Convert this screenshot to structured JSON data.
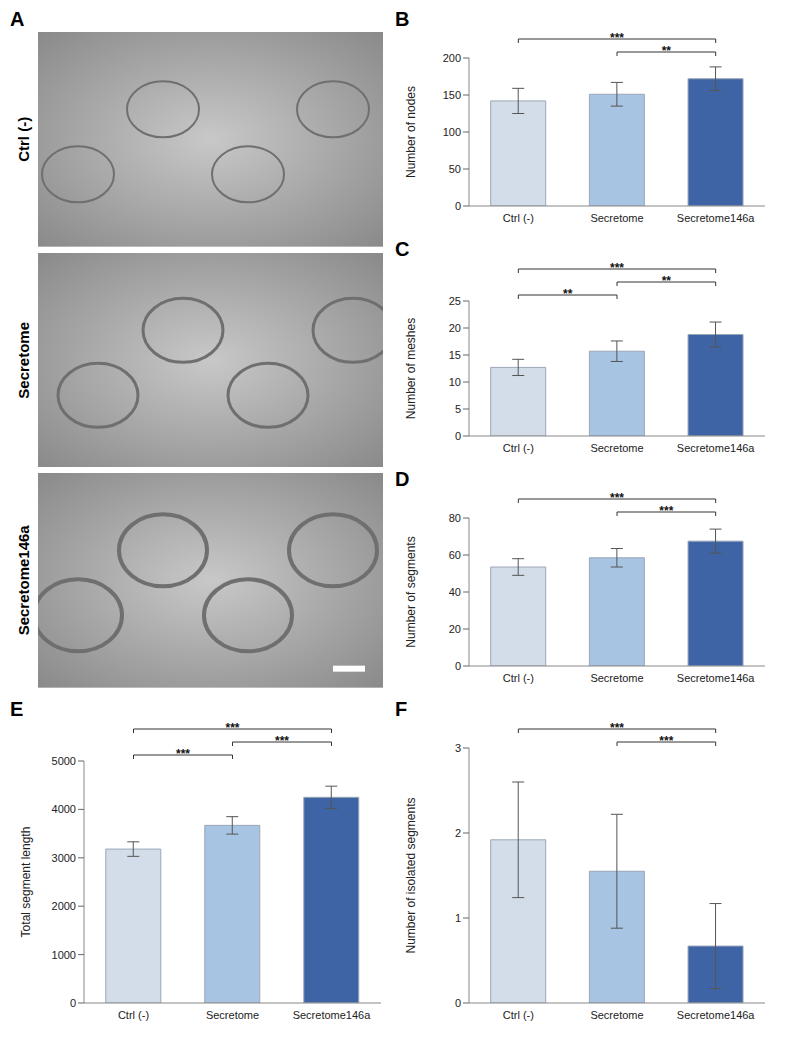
{
  "image_panel": {
    "panel_label": "A",
    "rows": [
      "Ctrl (-)",
      "Secretome",
      "Secretome146a"
    ]
  },
  "chart_data": [
    {
      "type": "bar",
      "panel_label": "B",
      "y_label": "Number of nodes",
      "categories": [
        "Ctrl (-)",
        "Secretome",
        "Secretome146a"
      ],
      "values": [
        142,
        151,
        172
      ],
      "errors": [
        17,
        16,
        16
      ],
      "colors": [
        "#d3dce9",
        "#a7c4e2",
        "#3f64a5"
      ],
      "ylim": [
        0,
        200
      ],
      "yticks": [
        0,
        50,
        100,
        150,
        200
      ],
      "grid": false,
      "annotations": [
        {
          "from": 1,
          "to": 2,
          "label": "**"
        },
        {
          "from": 0,
          "to": 2,
          "label": "***"
        }
      ]
    },
    {
      "type": "bar",
      "panel_label": "C",
      "y_label": "Number of meshes",
      "categories": [
        "Ctrl (-)",
        "Secretome",
        "Secretome146a"
      ],
      "values": [
        12.7,
        15.7,
        18.8
      ],
      "errors": [
        1.5,
        1.9,
        2.3
      ],
      "colors": [
        "#d3dce9",
        "#a7c4e2",
        "#3f64a5"
      ],
      "ylim": [
        0,
        25
      ],
      "yticks": [
        0,
        5,
        10,
        15,
        20,
        25
      ],
      "grid": false,
      "annotations": [
        {
          "from": 0,
          "to": 1,
          "label": "**"
        },
        {
          "from": 1,
          "to": 2,
          "label": "**"
        },
        {
          "from": 0,
          "to": 2,
          "label": "***"
        }
      ]
    },
    {
      "type": "bar",
      "panel_label": "D",
      "y_label": "Number of segments",
      "categories": [
        "Ctrl (-)",
        "Secretome",
        "Secretome146a"
      ],
      "values": [
        53.5,
        58.5,
        67.5
      ],
      "errors": [
        4.5,
        5,
        6.5
      ],
      "colors": [
        "#d3dce9",
        "#a7c4e2",
        "#3f64a5"
      ],
      "ylim": [
        0,
        80
      ],
      "yticks": [
        0,
        20,
        40,
        60,
        80
      ],
      "grid": false,
      "annotations": [
        {
          "from": 1,
          "to": 2,
          "label": "***"
        },
        {
          "from": 0,
          "to": 2,
          "label": "***"
        }
      ]
    },
    {
      "type": "bar",
      "panel_label": "E",
      "y_label": "Total segment length",
      "categories": [
        "Ctrl (-)",
        "Secretome",
        "Secretome146a"
      ],
      "values": [
        3180,
        3670,
        4250
      ],
      "errors": [
        150,
        180,
        230
      ],
      "colors": [
        "#d3dce9",
        "#a7c4e2",
        "#3f64a5"
      ],
      "ylim": [
        0,
        5000
      ],
      "yticks": [
        0,
        1000,
        2000,
        3000,
        4000,
        5000
      ],
      "grid": false,
      "annotations": [
        {
          "from": 0,
          "to": 1,
          "label": "***"
        },
        {
          "from": 1,
          "to": 2,
          "label": "***"
        },
        {
          "from": 0,
          "to": 2,
          "label": "***"
        }
      ]
    },
    {
      "type": "bar",
      "panel_label": "F",
      "y_label": "Number of isolated segments",
      "categories": [
        "Ctrl (-)",
        "Secretome",
        "Secretome146a"
      ],
      "values": [
        1.92,
        1.55,
        0.67
      ],
      "errors": [
        0.68,
        0.67,
        0.5
      ],
      "colors": [
        "#d3dce9",
        "#a7c4e2",
        "#3f64a5"
      ],
      "ylim": [
        0,
        3
      ],
      "yticks": [
        0,
        1,
        2,
        3
      ],
      "grid": false,
      "annotations": [
        {
          "from": 1,
          "to": 2,
          "label": "***"
        },
        {
          "from": 0,
          "to": 2,
          "label": "***"
        }
      ]
    }
  ]
}
